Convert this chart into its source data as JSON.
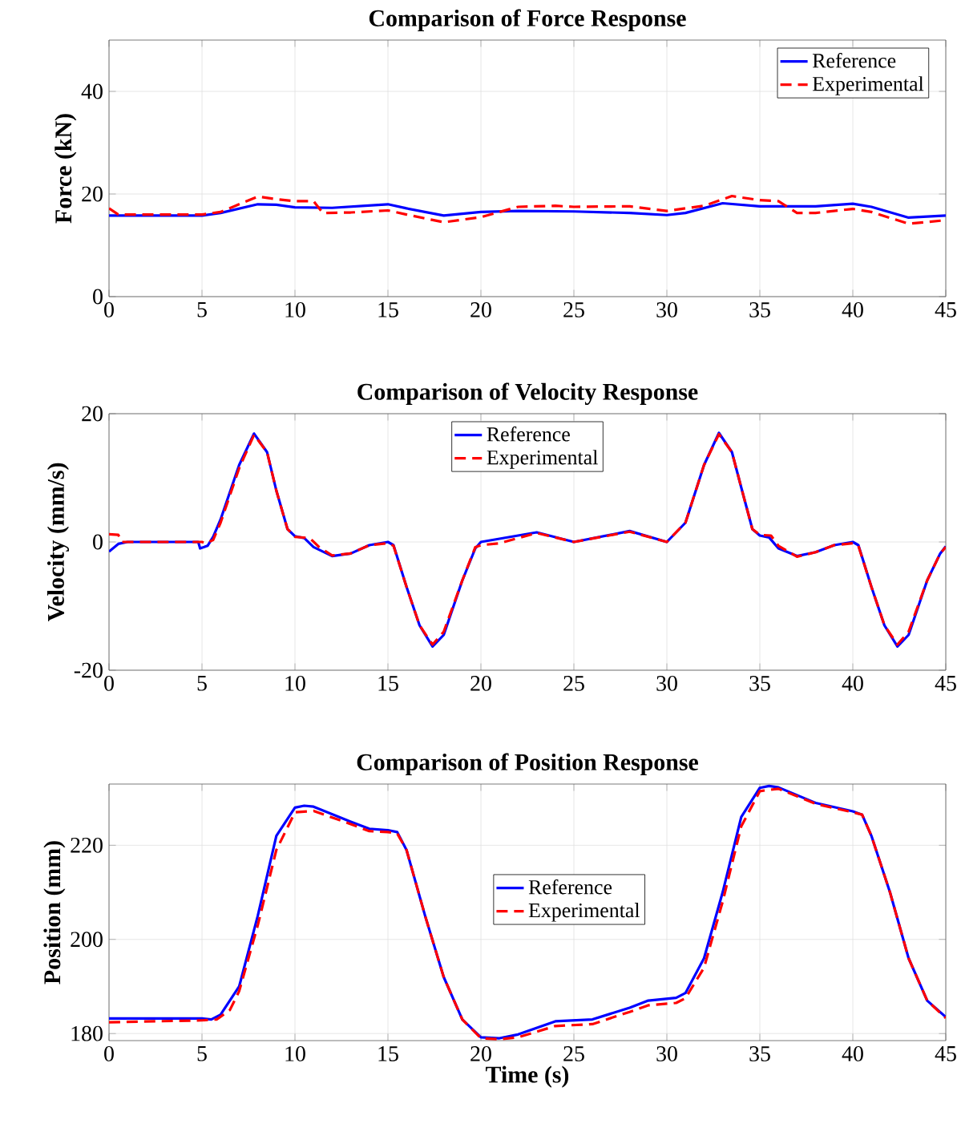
{
  "chart_data": [
    {
      "type": "line",
      "title": "Comparison of Force Response",
      "ylabel": "Force (kN)",
      "xlim": [
        0,
        45
      ],
      "ylim": [
        0,
        50
      ],
      "xticks": [
        0,
        5,
        10,
        15,
        20,
        25,
        30,
        35,
        40,
        45
      ],
      "yticks": [
        0,
        20,
        40
      ],
      "grid": true,
      "legend": "top right",
      "series": [
        {
          "name": "Reference",
          "color": "#0000ff",
          "line_style": "solid",
          "x": [
            0,
            5,
            6,
            8,
            9,
            10,
            12,
            15,
            16,
            18,
            20,
            22,
            25,
            28,
            30,
            31,
            33,
            35,
            38,
            40,
            41,
            43,
            45
          ],
          "values": [
            15.8,
            15.8,
            16.3,
            18,
            17.9,
            17.4,
            17.3,
            18,
            17.2,
            15.8,
            16.5,
            16.7,
            16.6,
            16.3,
            15.9,
            16.3,
            18.2,
            17.6,
            17.6,
            18.1,
            17.5,
            15.4,
            15.8
          ]
        },
        {
          "name": "Experimental",
          "color": "#ff0000",
          "line_style": "dashed",
          "x": [
            0,
            0.5,
            5,
            6,
            8,
            9,
            10,
            11,
            11.5,
            13,
            15,
            16,
            18,
            20,
            22,
            24,
            25,
            28,
            30,
            32,
            33.5,
            35,
            36,
            37,
            38,
            40,
            41,
            43,
            45
          ],
          "values": [
            17.2,
            16,
            16,
            16.5,
            19.5,
            19,
            18.6,
            18.6,
            16.3,
            16.4,
            16.8,
            16,
            14.5,
            15.5,
            17.5,
            17.7,
            17.5,
            17.6,
            16.7,
            17.7,
            19.6,
            18.8,
            18.6,
            16.3,
            16.3,
            17.1,
            16.5,
            14.2,
            14.9
          ]
        }
      ]
    },
    {
      "type": "line",
      "title": "Comparison of Velocity Response",
      "ylabel": "Velocity (mm/s)",
      "xlim": [
        0,
        45
      ],
      "ylim": [
        -20,
        20
      ],
      "xticks": [
        0,
        5,
        10,
        15,
        20,
        25,
        30,
        35,
        40,
        45
      ],
      "yticks": [
        -20,
        0,
        20
      ],
      "grid": true,
      "legend": "top",
      "series": [
        {
          "name": "Reference",
          "color": "#0000ff",
          "line_style": "solid",
          "x": [
            0,
            0.5,
            1,
            4.8,
            4.9,
            5.3,
            5.6,
            6,
            7,
            7.8,
            8.5,
            9,
            9.6,
            10,
            10.5,
            11,
            12,
            13,
            14,
            15,
            15.3,
            16,
            16.7,
            17.4,
            18,
            19,
            19.7,
            20,
            21,
            23,
            25,
            28,
            30,
            31,
            32,
            32.8,
            33.5,
            34,
            34.6,
            35,
            35.5,
            36,
            37,
            38,
            39,
            40,
            40.3,
            41,
            41.7,
            42.4,
            43,
            44,
            44.7,
            45
          ],
          "values": [
            -1.5,
            -0.3,
            0,
            0,
            -1,
            -0.6,
            0.8,
            3.5,
            12,
            16.9,
            14,
            8,
            2,
            0.9,
            0.6,
            -0.8,
            -2.2,
            -1.8,
            -0.5,
            0,
            -0.5,
            -7,
            -13,
            -16.3,
            -14.5,
            -6,
            -1,
            0,
            0.5,
            1.5,
            0,
            1.7,
            0,
            3,
            12,
            17,
            14,
            8.5,
            2,
            1,
            0.7,
            -1,
            -2.2,
            -1.6,
            -0.5,
            0,
            -0.5,
            -7,
            -13,
            -16.3,
            -14.5,
            -6,
            -1.8,
            -0.7
          ]
        },
        {
          "name": "Experimental",
          "color": "#ff0000",
          "line_style": "dashed",
          "x": [
            0,
            0.5,
            0.7,
            5,
            5.2,
            5.6,
            6,
            7,
            7.8,
            8.5,
            9,
            9.6,
            10,
            10.8,
            11.3,
            12,
            13,
            14,
            15,
            15.3,
            16,
            16.7,
            17.4,
            18,
            19,
            19.7,
            20,
            21,
            23,
            25,
            28,
            30,
            31,
            32,
            32.8,
            33.5,
            34,
            34.6,
            35,
            35.6,
            36,
            37,
            38,
            39,
            40,
            40.3,
            41,
            41.7,
            42.4,
            43,
            44,
            44.7,
            45
          ],
          "values": [
            1.2,
            1.1,
            0,
            0,
            -0.2,
            0.3,
            3,
            11.5,
            16.7,
            14,
            8,
            2,
            0.8,
            0.6,
            -0.8,
            -2.1,
            -1.8,
            -0.5,
            -0.2,
            -0.6,
            -7,
            -13,
            -16,
            -14,
            -6,
            -0.8,
            -0.5,
            -0.2,
            1.4,
            0,
            1.6,
            0,
            3,
            12,
            16.8,
            14,
            8.5,
            2,
            1.1,
            1,
            -0.6,
            -2.3,
            -1.6,
            -0.5,
            -0.2,
            -0.6,
            -7,
            -13,
            -16,
            -14,
            -6,
            -1.8,
            -0.8
          ]
        }
      ]
    },
    {
      "type": "line",
      "title": "Comparison of Position Response",
      "xlabel": "Time (s)",
      "ylabel": "Position (mm)",
      "xlim": [
        0,
        45
      ],
      "ylim": [
        178.5,
        233
      ],
      "xticks": [
        0,
        5,
        10,
        15,
        20,
        25,
        30,
        35,
        40,
        45
      ],
      "yticks": [
        180,
        200,
        220
      ],
      "grid": true,
      "legend": "center",
      "series": [
        {
          "name": "Reference",
          "color": "#0000ff",
          "line_style": "solid",
          "x": [
            0,
            5,
            5.5,
            6,
            7,
            8,
            9,
            10,
            10.5,
            11,
            13,
            14,
            15,
            15.5,
            16,
            17,
            18,
            19,
            20,
            21,
            22,
            24,
            26,
            28,
            29,
            30.5,
            31,
            32,
            33,
            34,
            35,
            35.5,
            36,
            38,
            40,
            40.5,
            41,
            42,
            43,
            44,
            45
          ],
          "values": [
            183.2,
            183.2,
            183,
            184,
            190,
            205,
            222,
            228,
            228.4,
            228.2,
            225,
            223.5,
            223.2,
            222.8,
            219,
            205,
            192,
            183,
            179.2,
            179,
            179.8,
            182.6,
            183,
            185.5,
            187,
            187.6,
            188.6,
            196,
            210,
            226,
            232.2,
            232.6,
            232.3,
            229,
            227.2,
            226.5,
            222,
            210,
            196,
            187,
            183.5
          ]
        },
        {
          "name": "Experimental",
          "color": "#ff0000",
          "line_style": "dashed",
          "x": [
            0,
            5,
            5.8,
            6.5,
            7,
            8,
            9,
            10,
            11,
            13,
            14,
            15,
            15.5,
            16,
            17,
            18,
            19,
            20,
            21,
            22,
            24,
            26,
            28,
            29,
            30.5,
            31,
            32,
            33,
            34,
            35,
            36,
            38,
            40,
            40.5,
            41,
            42,
            43,
            44,
            45
          ],
          "values": [
            182.4,
            182.8,
            183,
            185,
            189,
            203,
            219,
            227,
            227.3,
            224.5,
            223,
            222.8,
            222.5,
            219,
            205,
            192,
            183,
            179,
            178.8,
            179.2,
            181.6,
            182,
            184.6,
            186,
            186.5,
            187.5,
            194,
            208,
            224,
            231.5,
            232,
            228.8,
            227,
            226.5,
            222,
            210,
            196,
            187,
            183.3
          ]
        }
      ]
    }
  ]
}
